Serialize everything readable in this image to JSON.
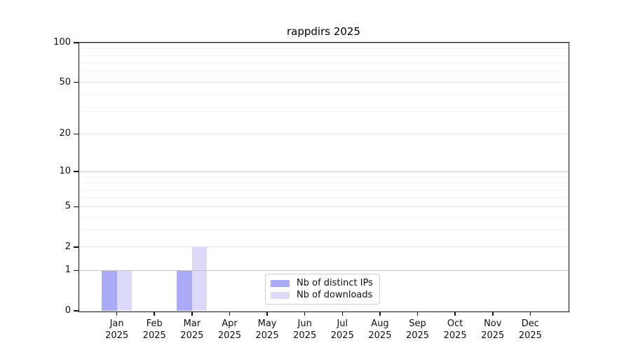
{
  "title": "rappdirs 2025",
  "colors": {
    "bar_distinct_ips": "#aaaaf7",
    "bar_downloads": "#dcdaf8",
    "axis": "#111111",
    "grid_decade": "#c4c4c4",
    "grid_major": "#e2e2e2",
    "grid_minor": "#f2f2f2",
    "legend_border": "#cccccc",
    "background": "#ffffff"
  },
  "chart_data": {
    "type": "bar",
    "title": "rappdirs 2025",
    "categories": [
      "Jan",
      "Feb",
      "Mar",
      "Apr",
      "May",
      "Jun",
      "Jul",
      "Aug",
      "Sep",
      "Oct",
      "Nov",
      "Dec"
    ],
    "category_year": "2025",
    "series": [
      {
        "name": "Nb of distinct IPs",
        "color": "#aaaaf7",
        "values": [
          1,
          0,
          1,
          0,
          0,
          0,
          0,
          0,
          0,
          0,
          0,
          0
        ]
      },
      {
        "name": "Nb of downloads",
        "color": "#dcdaf8",
        "values": [
          1,
          0,
          2,
          0,
          0,
          0,
          0,
          0,
          0,
          0,
          0,
          0
        ]
      }
    ],
    "xlabel": "",
    "ylabel": "",
    "yscale": "log1p",
    "ylim": [
      0,
      100
    ],
    "yticks": [
      0,
      1,
      2,
      5,
      10,
      20,
      50,
      100
    ],
    "decade_gridlines": [
      1,
      10,
      100
    ],
    "minor_gridlines": [
      3,
      4,
      6,
      7,
      8,
      9,
      30,
      40,
      60,
      70,
      80,
      90
    ],
    "grid": "horizontal",
    "legend_position": "inside-bottom-center"
  }
}
